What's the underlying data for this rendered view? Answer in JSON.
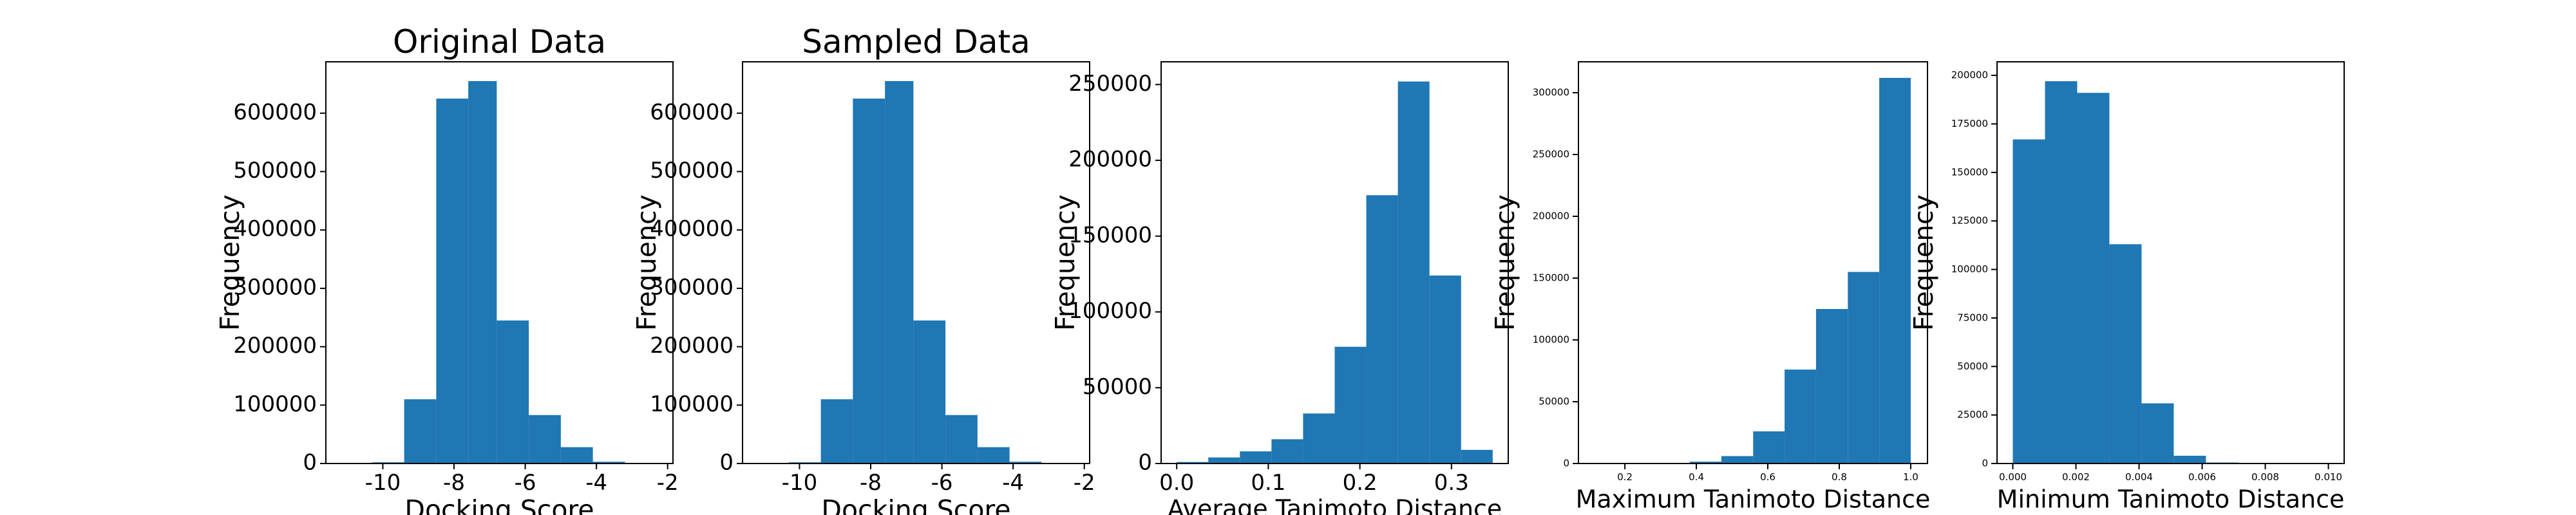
{
  "chart_data": [
    {
      "type": "histogram",
      "title": "Original Data",
      "xlabel": "Docking Score",
      "ylabel": "Frequency",
      "color": "#1f77b4",
      "bins": [
        -10.3,
        -9.4,
        -8.5,
        -7.6,
        -6.8,
        -5.9,
        -5.0,
        -4.1,
        -3.2
      ],
      "values": [
        2000,
        110000,
        625000,
        655000,
        245000,
        83000,
        28000,
        3000
      ],
      "xlim": [
        -11.6,
        -1.85
      ],
      "xticks": [
        -10,
        -8,
        -6,
        -4,
        -2
      ],
      "ylim": [
        0,
        688000
      ],
      "yticks": [
        0,
        100000,
        200000,
        300000,
        400000,
        500000,
        600000
      ]
    },
    {
      "type": "histogram",
      "title": "Sampled Data",
      "xlabel": "Docking Score",
      "ylabel": "Frequency",
      "color": "#1f77b4",
      "bins": [
        -10.3,
        -9.4,
        -8.5,
        -7.6,
        -6.8,
        -5.9,
        -5.0,
        -4.1,
        -3.2
      ],
      "values": [
        2000,
        110000,
        625000,
        655000,
        245000,
        83000,
        28000,
        3000
      ],
      "xlim": [
        -11.6,
        -1.85
      ],
      "xticks": [
        -10,
        -8,
        -6,
        -4,
        -2
      ],
      "ylim": [
        0,
        688000
      ],
      "yticks": [
        0,
        100000,
        200000,
        300000,
        400000,
        500000,
        600000
      ]
    },
    {
      "type": "histogram",
      "xlabel": "Average Tanimoto Distance",
      "ylabel": "Frequency",
      "color": "#1f77b4",
      "bins": [
        0.0,
        0.0345,
        0.069,
        0.1035,
        0.138,
        0.1725,
        0.207,
        0.2415,
        0.276,
        0.3105,
        0.345
      ],
      "values": [
        1000,
        4000,
        8000,
        16000,
        33000,
        77000,
        177000,
        252000,
        124000,
        9000
      ],
      "xlim": [
        -0.017,
        0.362
      ],
      "xticks": [
        {
          "value": 0,
          "label": "0.0"
        },
        0.1,
        0.2,
        0.3
      ],
      "ylim": [
        0,
        265000
      ],
      "yticks": [
        0,
        50000,
        100000,
        150000,
        200000,
        250000
      ]
    },
    {
      "type": "histogram",
      "xlabel": "Maximum Tanimoto Distance",
      "ylabel": "Frequency",
      "color": "#1f77b4",
      "bins": [
        0.118,
        0.206,
        0.294,
        0.382,
        0.47,
        0.559,
        0.647,
        0.735,
        0.824,
        0.912,
        1.0
      ],
      "values": [
        0,
        0,
        300,
        1500,
        6000,
        26000,
        76000,
        125000,
        155000,
        312000
      ],
      "xlim": [
        0.07,
        1.047
      ],
      "xticks": [
        0.2,
        0.4,
        0.6,
        0.8,
        {
          "value": 1,
          "label": "1.0"
        }
      ],
      "ylim": [
        0,
        325000
      ],
      "yticks": [
        0,
        50000,
        100000,
        150000,
        200000,
        250000,
        300000
      ]
    },
    {
      "type": "histogram",
      "xlabel": "Minimum Tanimoto Distance",
      "ylabel": "Frequency",
      "color": "#1f77b4",
      "bins": [
        0.0,
        0.00102,
        0.00204,
        0.00306,
        0.00408,
        0.0051,
        0.00612,
        0.00714,
        0.00816,
        0.00918,
        0.0102
      ],
      "values": [
        167000,
        197000,
        191000,
        113000,
        31000,
        4000,
        500,
        100,
        20,
        5
      ],
      "xlim": [
        -0.0005,
        0.0105
      ],
      "xticks": [
        {
          "value": 0,
          "label": "0.000"
        },
        0.002,
        0.004,
        0.006,
        0.008,
        {
          "value": 0.01,
          "label": "0.010"
        }
      ],
      "ylim": [
        0,
        207000
      ],
      "yticks": [
        0,
        25000,
        50000,
        75000,
        100000,
        125000,
        150000,
        175000,
        200000
      ]
    }
  ]
}
